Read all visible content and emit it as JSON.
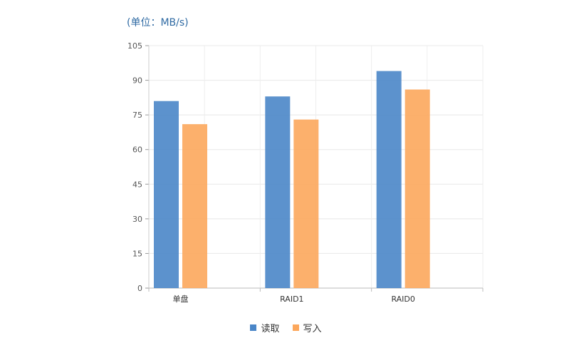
{
  "unit_label": "(单位：MB/s)",
  "chart_data": {
    "type": "bar",
    "categories": [
      "单盘",
      "RAID1",
      "RAID0"
    ],
    "series": [
      {
        "name": "读取",
        "values": [
          81,
          83,
          94
        ],
        "color": "#4a86c8"
      },
      {
        "name": "写入",
        "values": [
          71,
          73,
          86
        ],
        "color": "#fca75c"
      }
    ],
    "ylim": [
      0,
      105
    ],
    "yticks": [
      0,
      15,
      30,
      45,
      60,
      75,
      90,
      105
    ],
    "grid": true,
    "legend_position": "bottom"
  }
}
